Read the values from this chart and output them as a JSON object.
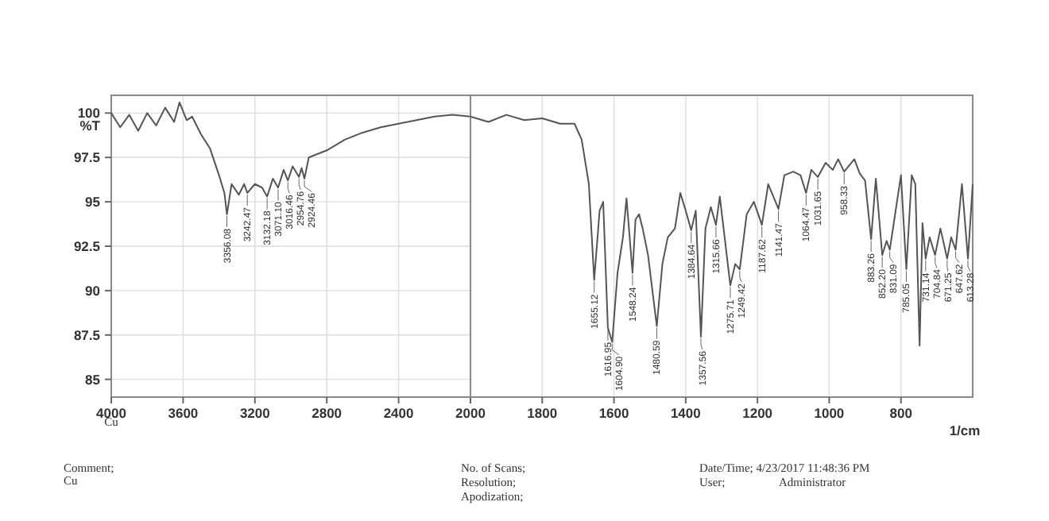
{
  "chart_data": [
    {
      "type": "line",
      "ylabel": "%T",
      "xlim": [
        4000,
        2000
      ],
      "xticks": [
        4000,
        3600,
        3200,
        2800,
        2400,
        2000
      ],
      "ylim": [
        84,
        101
      ],
      "yticks": [
        100,
        97.5,
        95,
        92.5,
        90,
        87.5,
        85
      ],
      "grid": true,
      "series": [
        {
          "color": "#555555",
          "x": [
            4000,
            3950,
            3900,
            3850,
            3800,
            3750,
            3700,
            3650,
            3620,
            3580,
            3550,
            3500,
            3450,
            3400,
            3370,
            3356.08,
            3330,
            3290,
            3260,
            3242.47,
            3200,
            3160,
            3132.18,
            3100,
            3071.1,
            3040,
            3016.46,
            2990,
            2954.76,
            2940,
            2924.46,
            2900,
            2800,
            2700,
            2600,
            2500,
            2400,
            2300,
            2200,
            2100,
            2000
          ],
          "values": [
            100.0,
            99.2,
            99.9,
            99.0,
            100.0,
            99.3,
            100.3,
            99.5,
            100.6,
            99.6,
            99.8,
            98.8,
            98.0,
            96.5,
            95.5,
            94.3,
            96.0,
            95.4,
            96.0,
            95.5,
            96.0,
            95.8,
            95.3,
            96.3,
            95.8,
            96.8,
            96.2,
            97.0,
            96.4,
            96.9,
            96.3,
            97.5,
            97.9,
            98.5,
            98.9,
            99.2,
            99.4,
            99.6,
            99.8,
            99.9,
            99.8
          ]
        }
      ],
      "annotations": [
        {
          "text": "3356.08",
          "x": 3356.08,
          "y": 94.3
        },
        {
          "text": "3242.47",
          "x": 3242.47,
          "y": 95.5
        },
        {
          "text": "3132.18",
          "x": 3132.18,
          "y": 95.3
        },
        {
          "text": "3071.10",
          "x": 3071.1,
          "y": 95.8
        },
        {
          "text": "3016.46",
          "x": 3016.46,
          "y": 96.2
        },
        {
          "text": "2954.76",
          "x": 2954.76,
          "y": 96.4
        },
        {
          "text": "2924.46",
          "x": 2924.46,
          "y": 96.3
        },
        "Cu",
        "Comment;",
        "Cu"
      ]
    },
    {
      "type": "line",
      "xlabel": "1/cm",
      "tick_labels": "x",
      "xlim": [
        2000,
        600
      ],
      "xticks": [
        1800,
        1600,
        1400,
        1200,
        1000,
        800
      ],
      "ylim": [
        84,
        101
      ],
      "grid": true,
      "series": [
        {
          "color": "#555555",
          "x": [
            2000,
            1950,
            1900,
            1850,
            1800,
            1750,
            1710,
            1690,
            1670,
            1655.12,
            1640,
            1630,
            1616.95,
            1604.9,
            1590,
            1575,
            1565,
            1548.24,
            1540,
            1530,
            1520,
            1505,
            1480.59,
            1465,
            1450,
            1430,
            1415,
            1400,
            1384.64,
            1372,
            1357.56,
            1345,
            1330,
            1315.66,
            1305,
            1275.71,
            1262,
            1249.42,
            1230,
            1210,
            1187.62,
            1170,
            1141.47,
            1125,
            1100,
            1080,
            1064.47,
            1050,
            1031.65,
            1010,
            990,
            975,
            958.33,
            930,
            915,
            900,
            883.26,
            870,
            852.2,
            840,
            831.09,
            800,
            785.05,
            770,
            760,
            748,
            740,
            731.14,
            720,
            704.84,
            690,
            671.25,
            660,
            647.62,
            630,
            613.28,
            600
          ],
          "values": [
            99.8,
            99.5,
            99.9,
            99.6,
            99.7,
            99.4,
            99.4,
            98.5,
            96.0,
            90.6,
            94.5,
            95.0,
            87.9,
            87.1,
            91.0,
            93.0,
            95.2,
            91.0,
            94.0,
            94.3,
            93.5,
            92.0,
            88.0,
            91.5,
            93.0,
            93.5,
            95.5,
            94.5,
            93.4,
            94.5,
            87.4,
            93.5,
            94.7,
            93.7,
            95.3,
            90.3,
            91.5,
            91.2,
            94.3,
            95.0,
            93.7,
            96.0,
            94.6,
            96.5,
            96.7,
            96.5,
            95.5,
            96.8,
            96.4,
            97.2,
            96.8,
            97.4,
            96.7,
            97.4,
            96.6,
            96.2,
            92.9,
            96.3,
            92.0,
            92.8,
            92.3,
            96.5,
            91.2,
            96.5,
            96.0,
            86.9,
            93.8,
            91.8,
            93.0,
            92.0,
            93.5,
            91.8,
            93.0,
            92.3,
            96.0,
            91.8,
            96.0
          ]
        }
      ],
      "annotations": [
        {
          "text": "1655.12",
          "x": 1655.12,
          "y": 90.6
        },
        {
          "text": "1616.95",
          "x": 1616.95,
          "y": 87.9
        },
        {
          "text": "1604.90",
          "x": 1604.9,
          "y": 87.1
        },
        {
          "text": "1548.24",
          "x": 1548.24,
          "y": 91.0
        },
        {
          "text": "1480.59",
          "x": 1480.59,
          "y": 88.0
        },
        {
          "text": "1384.64",
          "x": 1384.64,
          "y": 93.4
        },
        {
          "text": "1357.56",
          "x": 1357.56,
          "y": 87.4
        },
        {
          "text": "1315.66",
          "x": 1315.66,
          "y": 93.7
        },
        {
          "text": "1275.71",
          "x": 1275.71,
          "y": 90.3
        },
        {
          "text": "1249.42",
          "x": 1249.42,
          "y": 91.2
        },
        {
          "text": "1187.62",
          "x": 1187.62,
          "y": 93.7
        },
        {
          "text": "1141.47",
          "x": 1141.47,
          "y": 94.6
        },
        {
          "text": "1064.47",
          "x": 1064.47,
          "y": 95.5
        },
        {
          "text": "1031.65",
          "x": 1031.65,
          "y": 96.4
        },
        {
          "text": "958.33",
          "x": 958.33,
          "y": 96.7
        },
        {
          "text": "883.26",
          "x": 883.26,
          "y": 92.9
        },
        {
          "text": "852.20",
          "x": 852.2,
          "y": 92.0
        },
        {
          "text": "831.09",
          "x": 831.09,
          "y": 92.3
        },
        {
          "text": "785.05",
          "x": 785.05,
          "y": 91.2
        },
        {
          "text": "731.14",
          "x": 731.14,
          "y": 91.8
        },
        {
          "text": "704.84",
          "x": 704.84,
          "y": 92.0
        },
        {
          "text": "671.25",
          "x": 671.25,
          "y": 91.8
        },
        {
          "text": "647.62",
          "x": 647.62,
          "y": 92.3
        },
        {
          "text": "613.28",
          "x": 613.28,
          "y": 91.8
        },
        "No. of Scans;",
        "Resolution;",
        "Apodization;",
        "Date/Time; 4/23/2017 11:48:36 PM",
        "User;",
        "Administrator"
      ]
    }
  ]
}
